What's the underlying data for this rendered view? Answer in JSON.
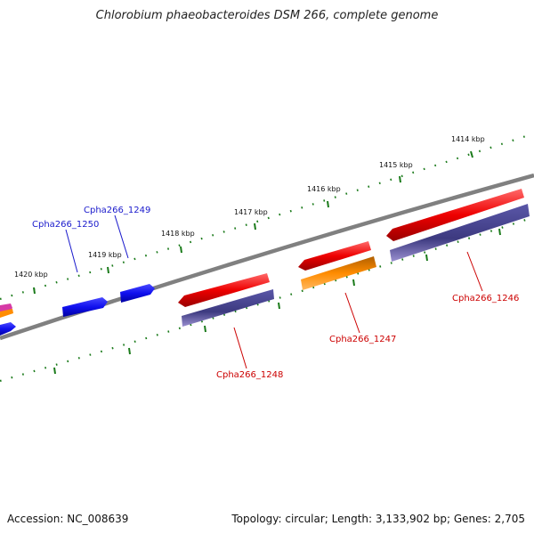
{
  "title": "Chlorobium phaeobacteroides DSM 266, complete genome",
  "footer": {
    "accession": "Accession: NC_008639",
    "summary": "Topology: circular; Length: 3,133,902 bp; Genes: 2,705"
  },
  "ticks": [
    "1414 kbp",
    "1415 kbp",
    "1416 kbp",
    "1417 kbp",
    "1418 kbp",
    "1419 kbp",
    "1420 kbp"
  ],
  "genes": [
    {
      "name": "Cpha266_1250",
      "color": "#1a1acc"
    },
    {
      "name": "Cpha266_1249",
      "color": "#1a1acc"
    },
    {
      "name": "Cpha266_1248",
      "color": "#cc0000"
    },
    {
      "name": "Cpha266_1247",
      "color": "#cc0000"
    },
    {
      "name": "Cpha266_1246",
      "color": "#cc0000"
    }
  ],
  "colors": {
    "backbone": "#808080",
    "tick": "#1a7a1a",
    "blue_feature": "#1010ee",
    "red_feature": "#ee0000",
    "purple_feature": "#3d3a80",
    "orange_feature": "#ff8c00"
  }
}
